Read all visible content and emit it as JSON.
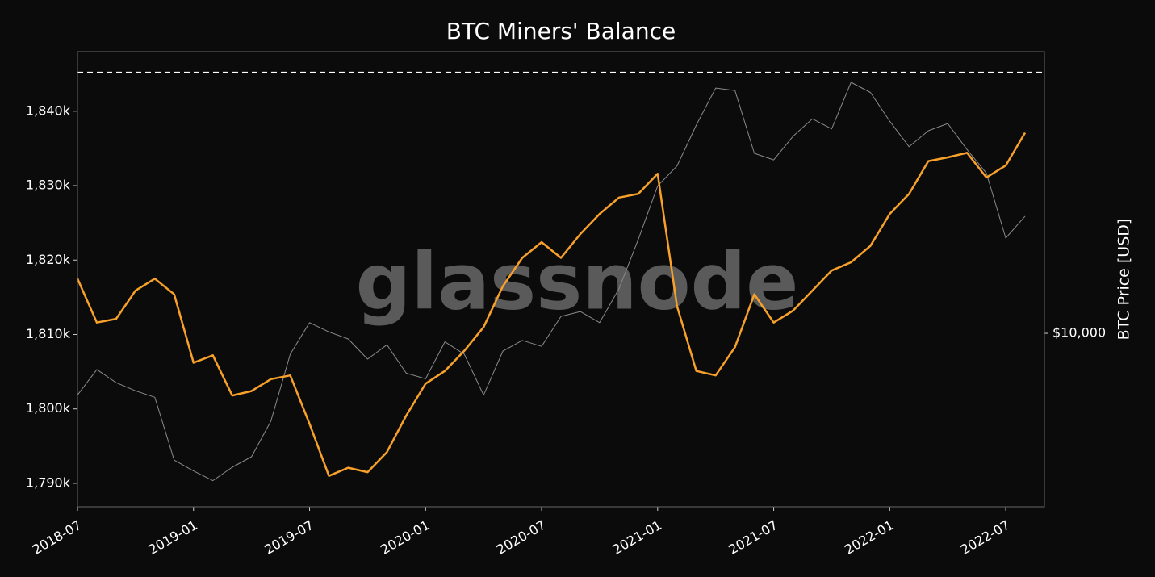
{
  "chart_data": {
    "type": "line",
    "title": "BTC Miners' Balance",
    "watermark": "glassnode",
    "x": [
      "2018-07",
      "2018-08",
      "2018-09",
      "2018-10",
      "2018-11",
      "2018-12",
      "2019-01",
      "2019-02",
      "2019-03",
      "2019-04",
      "2019-05",
      "2019-06",
      "2019-07",
      "2019-08",
      "2019-09",
      "2019-10",
      "2019-11",
      "2019-12",
      "2020-01",
      "2020-02",
      "2020-03",
      "2020-04",
      "2020-05",
      "2020-06",
      "2020-07",
      "2020-08",
      "2020-09",
      "2020-10",
      "2020-11",
      "2020-12",
      "2021-01",
      "2021-02",
      "2021-03",
      "2021-04",
      "2021-05",
      "2021-06",
      "2021-07",
      "2021-08",
      "2021-09",
      "2021-10",
      "2021-11",
      "2021-12",
      "2022-01",
      "2022-02",
      "2022-03",
      "2022-04",
      "2022-05",
      "2022-06",
      "2022-07",
      "2022-08"
    ],
    "xlim": [
      "2018-07",
      "2022-09"
    ],
    "xticks": [
      "2018-07",
      "2019-01",
      "2019-07",
      "2020-01",
      "2020-07",
      "2021-01",
      "2021-07",
      "2022-01",
      "2022-07"
    ],
    "ylim": [
      1786850,
      1848000
    ],
    "yticks": [
      {
        "value": 1790000,
        "label": "1,790k"
      },
      {
        "value": 1800000,
        "label": "1,800k"
      },
      {
        "value": 1810000,
        "label": "1,810k"
      },
      {
        "value": 1820000,
        "label": "1,820k"
      },
      {
        "value": 1830000,
        "label": "1,830k"
      },
      {
        "value": 1840000,
        "label": "1,840k"
      }
    ],
    "y2label": "BTC Price [USD]",
    "y2scale": "log",
    "y2lim": [
      2856,
      76500
    ],
    "y2ticks": [
      {
        "value": 10000,
        "label": "$10,000"
      }
    ],
    "reference_line": 1845200,
    "series": [
      {
        "name": "Miners' Balance",
        "color": "#f7a12a",
        "values": [
          1817500,
          1811600,
          1812100,
          1815900,
          1817500,
          1815400,
          1806200,
          1807200,
          1801800,
          1802400,
          1804000,
          1804500,
          1798000,
          1791000,
          1792100,
          1791500,
          1794200,
          1799100,
          1803400,
          1805100,
          1807800,
          1811000,
          1816500,
          1820300,
          1822400,
          1820300,
          1823500,
          1826200,
          1828400,
          1828900,
          1831600,
          1813800,
          1805100,
          1804500,
          1808300,
          1815400,
          1811600,
          1813200,
          1815900,
          1818600,
          1819700,
          1821900,
          1826200,
          1828900,
          1833300,
          1833800,
          1834400,
          1831100,
          1832700,
          1837100
        ]
      },
      {
        "name": "BTC Price",
        "color": "#8a8a8a",
        "axis": "y2",
        "values": [
          6400,
          7700,
          7000,
          6600,
          6300,
          4000,
          3700,
          3450,
          3800,
          4100,
          5300,
          8600,
          10800,
          10100,
          9600,
          8300,
          9200,
          7500,
          7200,
          9400,
          8600,
          6400,
          8800,
          9500,
          9100,
          11300,
          11700,
          10800,
          13800,
          19700,
          29000,
          33500,
          45000,
          58800,
          57800,
          36700,
          35000,
          41500,
          47100,
          43800,
          61300,
          57000,
          46300,
          38500,
          43200,
          45500,
          37700,
          31800,
          19900,
          23300
        ]
      }
    ]
  }
}
